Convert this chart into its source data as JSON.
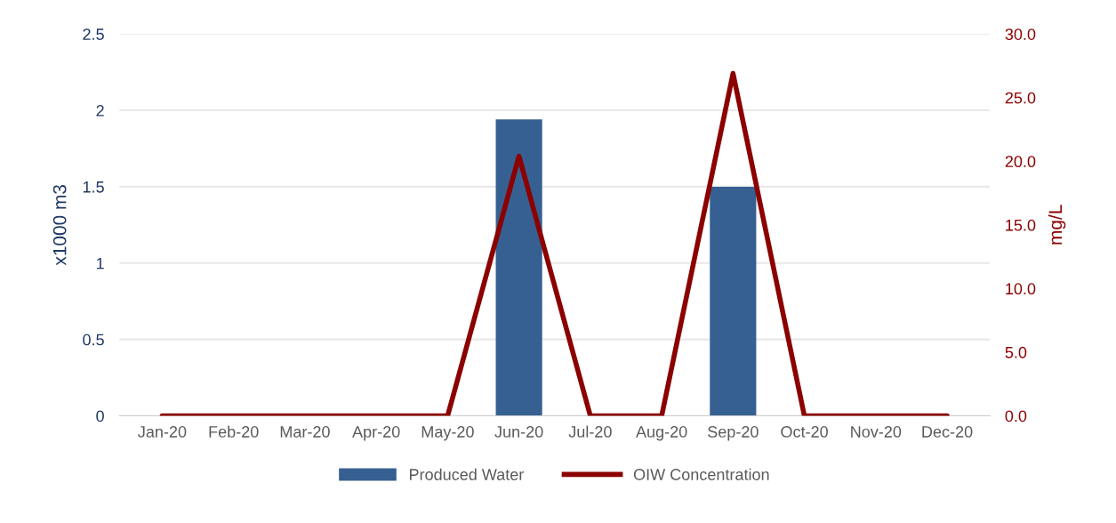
{
  "chart_data": {
    "type": "bar",
    "ylabel": "x1000 m3",
    "y2label": "mg/L",
    "categories": [
      "Jan-20",
      "Feb-20",
      "Mar-20",
      "Apr-20",
      "May-20",
      "Jun-20",
      "Jul-20",
      "Aug-20",
      "Sep-20",
      "Oct-20",
      "Nov-20",
      "Dec-20"
    ],
    "series": [
      {
        "name": "Produced Water",
        "color": "#366092",
        "values": [
          0,
          0,
          0,
          0,
          0,
          1.94,
          0,
          0,
          1.5,
          0,
          0,
          0
        ]
      },
      {
        "name": "OIW Concentration",
        "type": "line",
        "axis": "y2",
        "color": "#8b0000",
        "values": [
          0,
          0,
          0,
          0,
          0,
          20.4,
          0,
          0,
          26.9,
          0,
          0,
          0
        ]
      }
    ],
    "ylim": [
      0,
      2.5
    ],
    "yticks": [
      0,
      {
        "value": 0.5,
        "label": "0.5"
      },
      1,
      {
        "value": 1.5,
        "label": "1.5"
      },
      2,
      {
        "value": 2.5,
        "label": "2.5"
      }
    ],
    "y2lim": [
      0,
      30
    ],
    "y2ticks": [
      {
        "value": 0,
        "label": "0.0"
      },
      {
        "value": 5,
        "label": "5.0"
      },
      {
        "value": 10,
        "label": "10.0"
      },
      {
        "value": 15,
        "label": "15.0"
      },
      {
        "value": 20,
        "label": "20.0"
      },
      {
        "value": 25,
        "label": "25.0"
      },
      {
        "value": 30,
        "label": "30.0"
      }
    ],
    "grid": "y",
    "legend": "bottom",
    "marker": "none"
  }
}
